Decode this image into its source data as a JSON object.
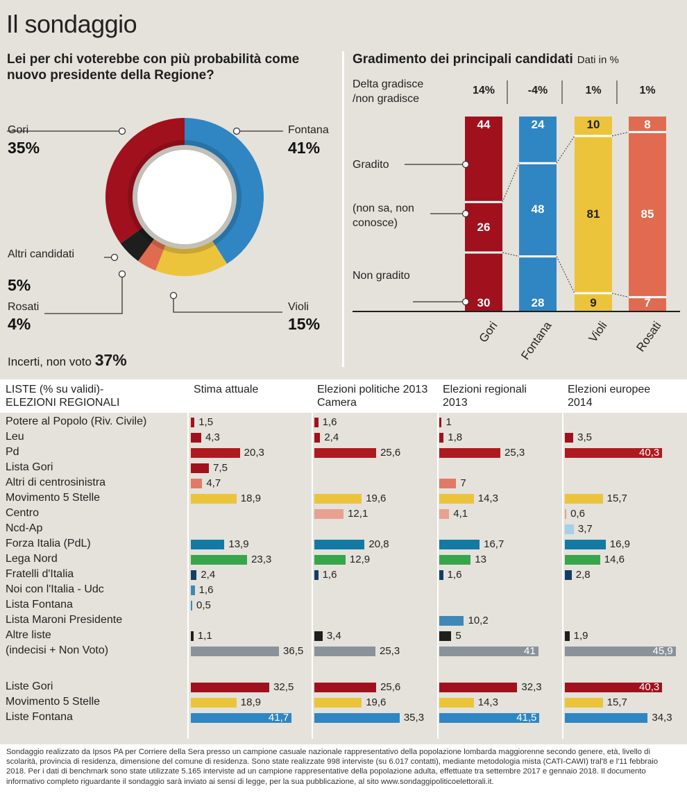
{
  "title": "Il sondaggio",
  "donut": {
    "question": "Lei per chi voterebbe con più probabilità come nuovo presidente della Regione?",
    "incerti_label": "Incerti, non voto",
    "incerti_value": "37%",
    "labels": [
      {
        "name": "Gori",
        "pct": "35%"
      },
      {
        "name": "Fontana",
        "pct": "41%"
      },
      {
        "name": "Altri candidati",
        "pct": "5%"
      },
      {
        "name": "Rosati",
        "pct": "4%"
      },
      {
        "name": "Violi",
        "pct": "15%"
      }
    ]
  },
  "gradimento": {
    "title": "Gradimento dei principali candidati",
    "subtitle": "Dati in %",
    "delta_label": "Delta gradisce /non gradisce",
    "row_labels": [
      "Gradito",
      "(non sa, non conosce)",
      "Non gradito"
    ]
  },
  "lists": {
    "header": [
      "LISTE (% su validi)- ELEZIONI REGIONALI",
      "Stima attuale",
      "Elezioni politiche 2013 Camera",
      "Elezioni regionali 2013",
      "Elezioni europee 2014"
    ]
  },
  "footnote": "Sondaggio realizzato da Ipsos PA per Corriere della Sera presso un campione casuale nazionale rappresentativo della popolazione lombarda maggiorenne secondo genere, età, livello di scolarità, provincia di residenza, dimensione del comune di residenza. Sono state realizzate 998 interviste (su 6.017 contatti), mediante metodologia mista (CATI-CAWI) tral'8 e l'11 febbraio 2018. Per i dati di benchmark sono state utilizzate 5.165 interviste ad un campione rappresentative della popolazione adulta, effettuate tra settembre 2017 e gennaio 2018. Il documento informativo completo riguardante il sondaggio sarà inviato ai sensi di legge, per la sua pubblicazione, al sito www.sondaggipoliticoelettorali.it.",
  "chart_data": [
    {
      "type": "pie",
      "title": "Lei per chi voterebbe con più probabilità come nuovo presidente della Regione?",
      "categories": [
        "Fontana",
        "Violi",
        "Rosati",
        "Altri candidati",
        "Gori"
      ],
      "values": [
        41,
        15,
        4,
        5,
        35
      ],
      "colors": [
        "#2f86c3",
        "#ecc43c",
        "#e06b50",
        "#1e1e1e",
        "#a0111d"
      ]
    },
    {
      "type": "bar",
      "stacked": true,
      "title": "Gradimento dei principali candidati",
      "categories": [
        "Gori",
        "Fontana",
        "Violi",
        "Rosati"
      ],
      "delta": [
        "14%",
        "-4%",
        "1%",
        "1%"
      ],
      "series": [
        {
          "name": "Gradito",
          "values": [
            44,
            24,
            10,
            8
          ]
        },
        {
          "name": "(non sa, non conosce)",
          "values": [
            26,
            48,
            81,
            85
          ]
        },
        {
          "name": "Non gradito",
          "values": [
            30,
            28,
            9,
            7
          ]
        }
      ],
      "colors": [
        "#a0111d",
        "#2f86c3",
        "#ecc43c",
        "#e06b50"
      ]
    },
    {
      "type": "bar",
      "orientation": "horizontal",
      "title": "LISTE (% su validi)- ELEZIONI REGIONALI",
      "columns": [
        "Stima attuale",
        "Elezioni politiche 2013 Camera",
        "Elezioni regionali 2013",
        "Elezioni europee 2014"
      ],
      "rows": [
        {
          "label": "Potere al Popolo (Riv. Civile)",
          "color": "#a0111d",
          "values": [
            "1,5",
            "1,6",
            "1",
            null
          ]
        },
        {
          "label": "Leu",
          "color": "#a0111d",
          "values": [
            "4,3",
            "2,4",
            "1,8",
            "3,5"
          ]
        },
        {
          "label": "Pd",
          "color": "#ad1a1f",
          "values": [
            "20,3",
            "25,6",
            "25,3",
            "40,3"
          ]
        },
        {
          "label": "Lista Gori",
          "color": "#a0111d",
          "values": [
            "7,5",
            null,
            null,
            null
          ]
        },
        {
          "label": "Altri di centrosinistra",
          "color": "#e07a66",
          "values": [
            "4,7",
            null,
            "7",
            null
          ]
        },
        {
          "label": "Movimento 5 Stelle",
          "color": "#ecc43c",
          "values": [
            "18,9",
            "19,6",
            "14,3",
            "15,7"
          ]
        },
        {
          "label": "Centro",
          "color": "#e8a190",
          "values": [
            null,
            "12,1",
            "4,1",
            "0,6"
          ]
        },
        {
          "label": "Ncd-Ap",
          "color": "#a8cfe6",
          "values": [
            null,
            null,
            null,
            "3,7"
          ]
        },
        {
          "label": "Forza Italia (PdL)",
          "color": "#137aa3",
          "values": [
            "13,9",
            "20,8",
            "16,7",
            "16,9"
          ]
        },
        {
          "label": "Lega Nord",
          "color": "#37a54a",
          "values": [
            "23,3",
            "12,9",
            "13",
            "14,6"
          ]
        },
        {
          "label": "Fratelli d'Italia",
          "color": "#123e66",
          "values": [
            "2,4",
            "1,6",
            "1,6",
            "2,8"
          ]
        },
        {
          "label": "Noi con l'Italia - Udc",
          "color": "#3f88b5",
          "values": [
            "1,6",
            null,
            null,
            null
          ]
        },
        {
          "label": "Lista Fontana",
          "color": "#3f88b5",
          "values": [
            "0,5",
            null,
            null,
            null
          ]
        },
        {
          "label": "Lista Maroni Presidente",
          "color": "#3f88b5",
          "values": [
            null,
            null,
            "10,2",
            null
          ]
        },
        {
          "label": "Altre liste",
          "color": "#1e1e1e",
          "values": [
            "1,1",
            "3,4",
            "5",
            "1,9"
          ]
        },
        {
          "label": "(indecisi + Non Voto)",
          "color": "#8a9399",
          "values": [
            "36,5",
            "25,3",
            "41",
            "45,9"
          ]
        },
        {
          "label": "",
          "color": "",
          "values": [
            null,
            null,
            null,
            null
          ]
        },
        {
          "label": "Liste Gori",
          "color": "#a0111d",
          "values": [
            "32,5",
            "25,6",
            "32,3",
            "40,3"
          ]
        },
        {
          "label": "Movimento 5 Stelle",
          "color": "#ecc43c",
          "values": [
            "18,9",
            "19,6",
            "14,3",
            "15,7"
          ]
        },
        {
          "label": "Liste Fontana",
          "color": "#2f86c3",
          "values": [
            "41,7",
            "35,3",
            "41,5",
            "34,3"
          ]
        }
      ]
    }
  ]
}
